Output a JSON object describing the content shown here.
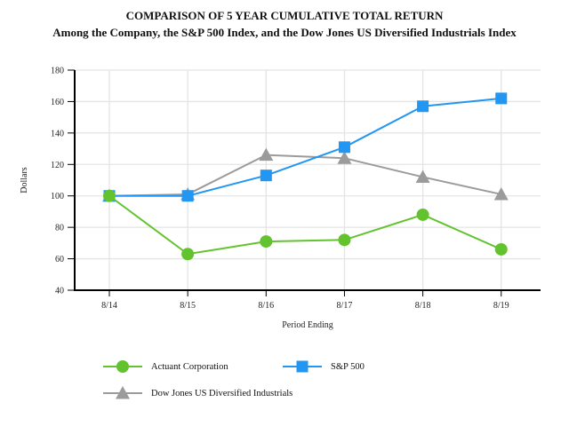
{
  "title": {
    "line1": "COMPARISON OF 5 YEAR CUMULATIVE TOTAL RETURN",
    "line2": "Among the Company, the S&P 500 Index, and the Dow Jones US Diversified Industrials Index"
  },
  "chart_data": {
    "type": "line",
    "title": "COMPARISON OF 5 YEAR CUMULATIVE TOTAL RETURN Among the Company, the S&P 500 Index, and the Dow Jones US Diversified Industrials Index",
    "categories": [
      "8/14",
      "8/15",
      "8/16",
      "8/17",
      "8/18",
      "8/19"
    ],
    "series": [
      {
        "name": "Actuant Corporation",
        "marker": "circle",
        "color": "#62C32E",
        "values": [
          100,
          63,
          71,
          72,
          88,
          66
        ]
      },
      {
        "name": "S&P 500",
        "marker": "square",
        "color": "#2196F3",
        "values": [
          100,
          100,
          113,
          131,
          157,
          162
        ]
      },
      {
        "name": "Dow Jones US Diversified Industrials",
        "marker": "triangle",
        "color": "#9B9B9B",
        "values": [
          100,
          101,
          126,
          124,
          112,
          101
        ]
      }
    ],
    "xlabel": "Period Ending",
    "ylabel": "Dollars",
    "ylim": [
      40,
      180
    ],
    "yticks": [
      40,
      60,
      80,
      100,
      120,
      140,
      160,
      180
    ],
    "grid": true,
    "legend_position": "bottom",
    "colors": {
      "grid": "#e4e4e4",
      "axis": "#000000",
      "text": "#222222"
    }
  }
}
